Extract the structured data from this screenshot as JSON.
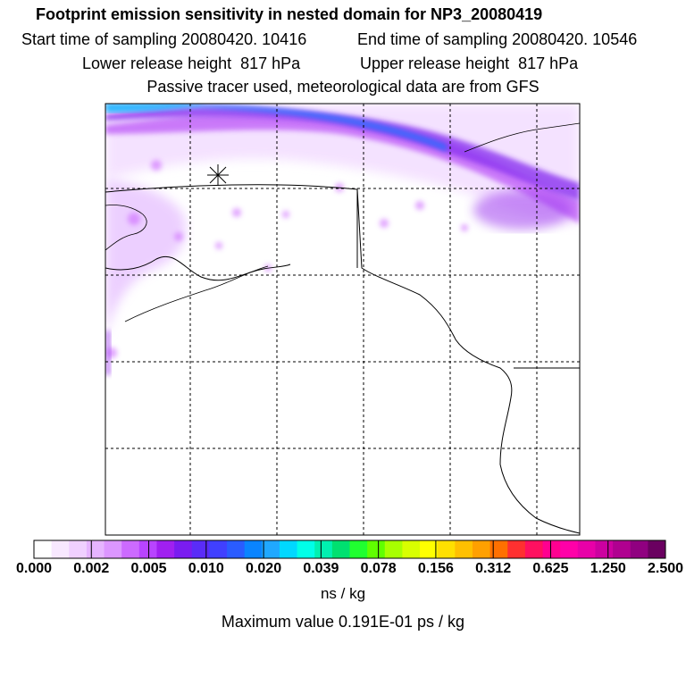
{
  "header": {
    "title": "Footprint emission sensitivity in nested domain for NP3_20080419",
    "sampling_start": "Start time of sampling 20080420. 10416",
    "sampling_end": "End time of sampling 20080420. 10546",
    "release_lower": "Lower release height  817 hPa",
    "release_upper": "Upper release height  817 hPa",
    "tracer_note": "Passive tracer used, meteorological data are from GFS"
  },
  "colorbar": {
    "ticks": [
      "0.000",
      "0.002",
      "0.005",
      "0.010",
      "0.020",
      "0.039",
      "0.078",
      "0.156",
      "0.312",
      "0.625",
      "1.250",
      "2.500"
    ],
    "colors": [
      "#ffffff",
      "#f8e8ff",
      "#f0d0ff",
      "#e6b4ff",
      "#dc96ff",
      "#cc6aff",
      "#b844ff",
      "#a020f0",
      "#7a1cf0",
      "#5a2cf8",
      "#4040ff",
      "#2a5cff",
      "#0a84ff",
      "#20a8ff",
      "#00d8ff",
      "#00ffe8",
      "#00f0b0",
      "#00e070",
      "#20ff30",
      "#60ff00",
      "#a8ff00",
      "#d8ff00",
      "#ffff00",
      "#ffe000",
      "#ffc000",
      "#ffa000",
      "#ff7000",
      "#ff3030",
      "#ff1060",
      "#ff0090",
      "#ff00a8",
      "#e800a8",
      "#cc00a0",
      "#b00090",
      "#900080",
      "#6a0060"
    ],
    "units": "ns / kg"
  },
  "max_value": "Maximum value  0.191E-01 ps / kg",
  "colors": {
    "light_purple": "#f0d6ff",
    "mid_purple": "#c86cf8",
    "violet": "#9a2cf0",
    "blue": "#1e6cff",
    "cyan": "#20b4ff",
    "coast": "#000000",
    "grid": "#000000"
  },
  "map": {
    "projection_grid": "dashed lat/lon grid",
    "receptor_marker": "star"
  }
}
